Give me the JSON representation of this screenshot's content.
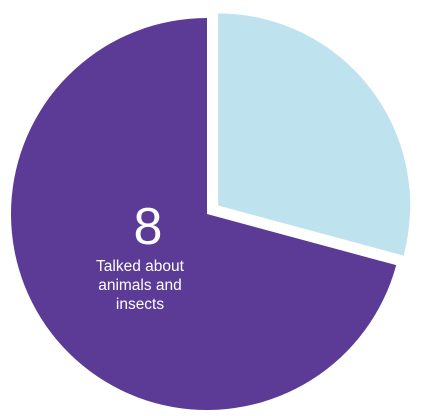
{
  "chart_data": {
    "type": "pie",
    "slices": [
      {
        "value": 8,
        "label_lines": [
          "Talked about",
          "animals and",
          "insects"
        ],
        "color": "#5b3b96"
      },
      {
        "value": 3.3,
        "label_lines": [],
        "color": "#bfe3ee"
      }
    ]
  }
}
